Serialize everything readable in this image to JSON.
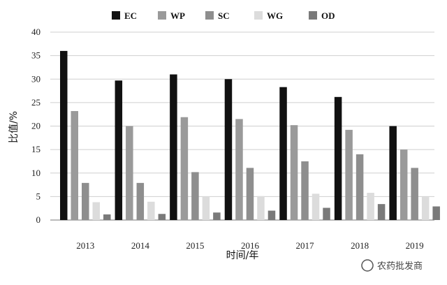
{
  "chart_data": {
    "type": "bar",
    "categories": [
      "2013",
      "2014",
      "2015",
      "2016",
      "2017",
      "2018",
      "2019"
    ],
    "series": [
      {
        "name": "EC",
        "color": "#111111",
        "values": [
          36,
          29.7,
          31,
          30,
          28.3,
          26.2,
          20
        ]
      },
      {
        "name": "WP",
        "color": "#9a9a9a",
        "values": [
          23.2,
          20,
          21.9,
          21.5,
          20.2,
          19.2,
          15
        ]
      },
      {
        "name": "SC",
        "color": "#8e8e8e",
        "values": [
          7.9,
          7.9,
          10.2,
          11.1,
          12.5,
          14,
          11.1
        ]
      },
      {
        "name": "WG",
        "color": "#dcdcdc",
        "values": [
          3.8,
          3.9,
          5,
          5.1,
          5.6,
          5.8,
          4.9
        ]
      },
      {
        "name": "OD",
        "color": "#7a7a7a",
        "values": [
          1.2,
          1.3,
          1.6,
          2,
          2.6,
          3.4,
          2.9
        ]
      }
    ],
    "xlabel": "时间/年",
    "ylabel": "比值/%",
    "ylim": [
      0,
      40
    ],
    "yticks": [
      0,
      5,
      10,
      15,
      20,
      25,
      30,
      35,
      40
    ],
    "grid": true,
    "legend": "top"
  },
  "watermark": "农药批发商"
}
